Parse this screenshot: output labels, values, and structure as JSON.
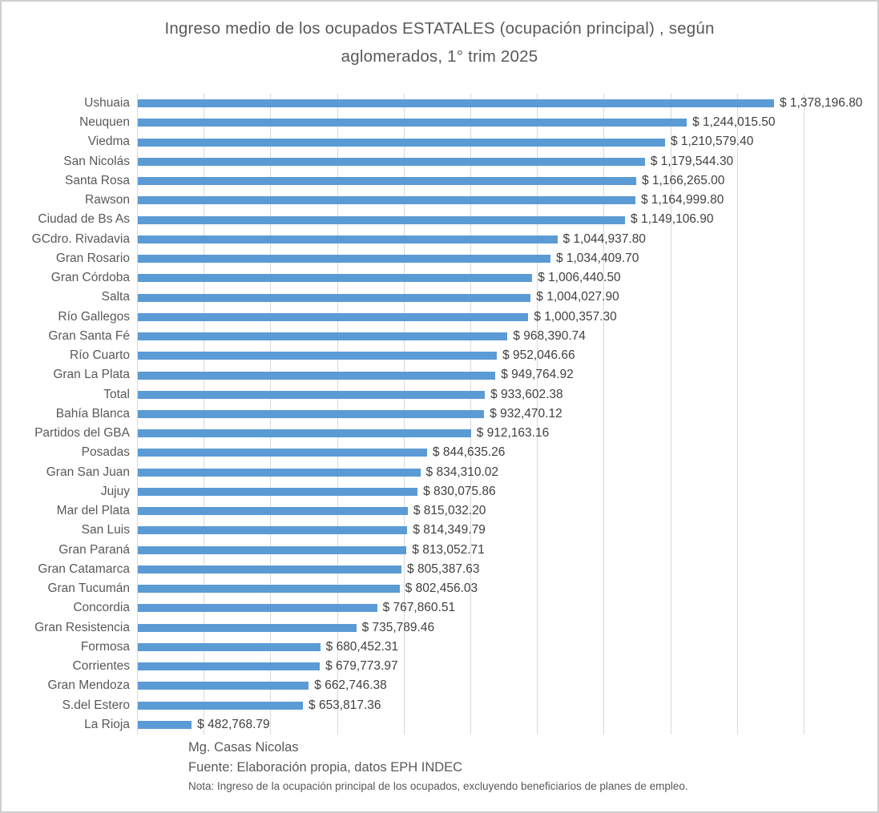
{
  "chart_data": {
    "type": "bar",
    "orientation": "horizontal",
    "title": "Ingreso medio de los ocupados ESTATALES (ocupación principal) , según aglomerados, 1° trim 2025",
    "title_lines": [
      "Ingreso medio de los ocupados ESTATALES (ocupación principal) , según",
      "aglomerados, 1° trim 2025"
    ],
    "xlabel": "",
    "ylabel": "",
    "legend": false,
    "grid": true,
    "gridline_intervals": 10,
    "xlim": [
      400000,
      1425000
    ],
    "bar_color": "#5b9bd5",
    "gridline_color": "#d9d9d9",
    "categories": [
      "Ushuaia",
      "Neuquen",
      "Viedma",
      "San Nicolás",
      "Santa Rosa",
      "Rawson",
      "Ciudad de Bs As",
      "GCdro. Rivadavia",
      "Gran Rosario",
      "Gran Córdoba",
      "Salta",
      "Río Gallegos",
      "Gran Santa Fé",
      "Río Cuarto",
      "Gran La Plata",
      "Total",
      "Bahía Blanca",
      "Partidos del GBA",
      "Posadas",
      "Gran San Juan",
      "Jujuy",
      "Mar del Plata",
      "San Luis",
      "Gran Paraná",
      "Gran Catamarca",
      "Gran Tucumán",
      "Concordia",
      "Gran Resistencia",
      "Formosa",
      "Corrientes",
      "Gran Mendoza",
      "S.del Estero",
      "La Rioja"
    ],
    "values": [
      1378196.8,
      1244015.5,
      1210579.4,
      1179544.3,
      1166265.0,
      1164999.8,
      1149106.9,
      1044937.8,
      1034409.7,
      1006440.5,
      1004027.9,
      1000357.3,
      968390.74,
      952046.66,
      949764.92,
      933602.38,
      932470.12,
      912163.16,
      844635.26,
      834310.02,
      830075.86,
      815032.2,
      814349.79,
      813052.71,
      805387.63,
      802456.03,
      767860.51,
      735789.46,
      680452.31,
      679773.97,
      662746.38,
      653817.36,
      482768.79
    ],
    "value_labels": [
      "$ 1,378,196.80",
      "$ 1,244,015.50",
      "$ 1,210,579.40",
      "$ 1,179,544.30",
      "$ 1,166,265.00",
      "$ 1,164,999.80",
      "$ 1,149,106.90",
      "$ 1,044,937.80",
      "$ 1,034,409.70",
      "$ 1,006,440.50",
      "$ 1,004,027.90",
      "$ 1,000,357.30",
      "$ 968,390.74",
      "$ 952,046.66",
      "$ 949,764.92",
      "$ 933,602.38",
      "$ 932,470.12",
      "$ 912,163.16",
      "$ 844,635.26",
      "$ 834,310.02",
      "$ 830,075.86",
      "$ 815,032.20",
      "$ 814,349.79",
      "$ 813,052.71",
      "$ 805,387.63",
      "$ 802,456.03",
      "$ 767,860.51",
      "$ 735,789.46",
      "$ 680,452.31",
      "$ 679,773.97",
      "$ 662,746.38",
      "$ 653,817.36",
      "$ 482,768.79"
    ]
  },
  "footer": {
    "author": "Mg. Casas Nicolas",
    "source": "Fuente: Elaboración propia, datos EPH INDEC",
    "note": "Nota: Ingreso de la ocupación principal de los ocupados, excluyendo beneficiarios de planes de empleo."
  }
}
